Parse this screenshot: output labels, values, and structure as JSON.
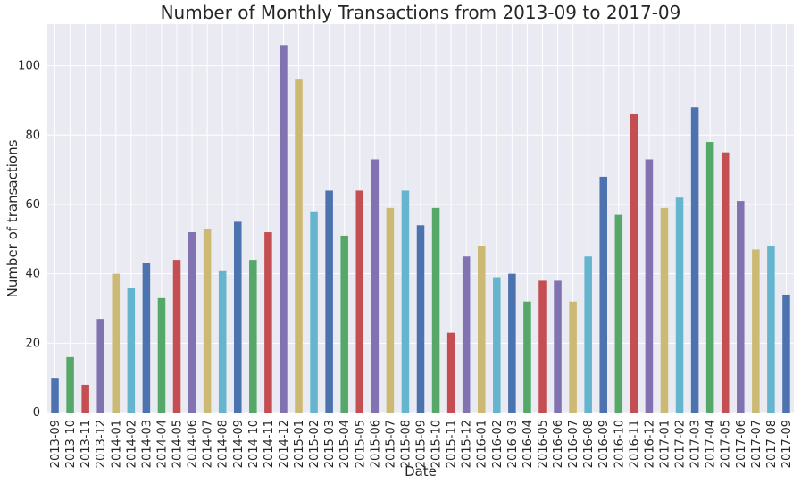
{
  "chart_data": {
    "type": "bar",
    "title": "Number of Monthly Transactions from 2013-09 to 2017-09",
    "xlabel": "Date",
    "ylabel": "Number of transactions",
    "ylim": [
      0,
      112
    ],
    "yticks": [
      0,
      20,
      40,
      60,
      80,
      100
    ],
    "grid": true,
    "categories": [
      "2013-09",
      "2013-10",
      "2013-11",
      "2013-12",
      "2014-01",
      "2014-02",
      "2014-03",
      "2014-04",
      "2014-05",
      "2014-06",
      "2014-07",
      "2014-08",
      "2014-09",
      "2014-10",
      "2014-11",
      "2014-12",
      "2015-01",
      "2015-02",
      "2015-03",
      "2015-04",
      "2015-05",
      "2015-06",
      "2015-07",
      "2015-08",
      "2015-09",
      "2015-10",
      "2015-11",
      "2015-12",
      "2016-01",
      "2016-02",
      "2016-03",
      "2016-04",
      "2016-05",
      "2016-06",
      "2016-07",
      "2016-08",
      "2016-09",
      "2016-10",
      "2016-11",
      "2016-12",
      "2017-01",
      "2017-02",
      "2017-03",
      "2017-04",
      "2017-05",
      "2017-06",
      "2017-07",
      "2017-08",
      "2017-09"
    ],
    "values": [
      10,
      16,
      8,
      27,
      40,
      36,
      43,
      33,
      44,
      52,
      53,
      41,
      55,
      44,
      52,
      106,
      96,
      58,
      64,
      51,
      64,
      73,
      59,
      64,
      54,
      59,
      23,
      45,
      48,
      39,
      40,
      32,
      38,
      38,
      32,
      45,
      68,
      57,
      86,
      73,
      59,
      62,
      88,
      78,
      75,
      61,
      47,
      48,
      34
    ],
    "colors": [
      "#4c72b0",
      "#55a868",
      "#c44e52",
      "#8172b2",
      "#ccb974",
      "#64b5cd"
    ]
  }
}
